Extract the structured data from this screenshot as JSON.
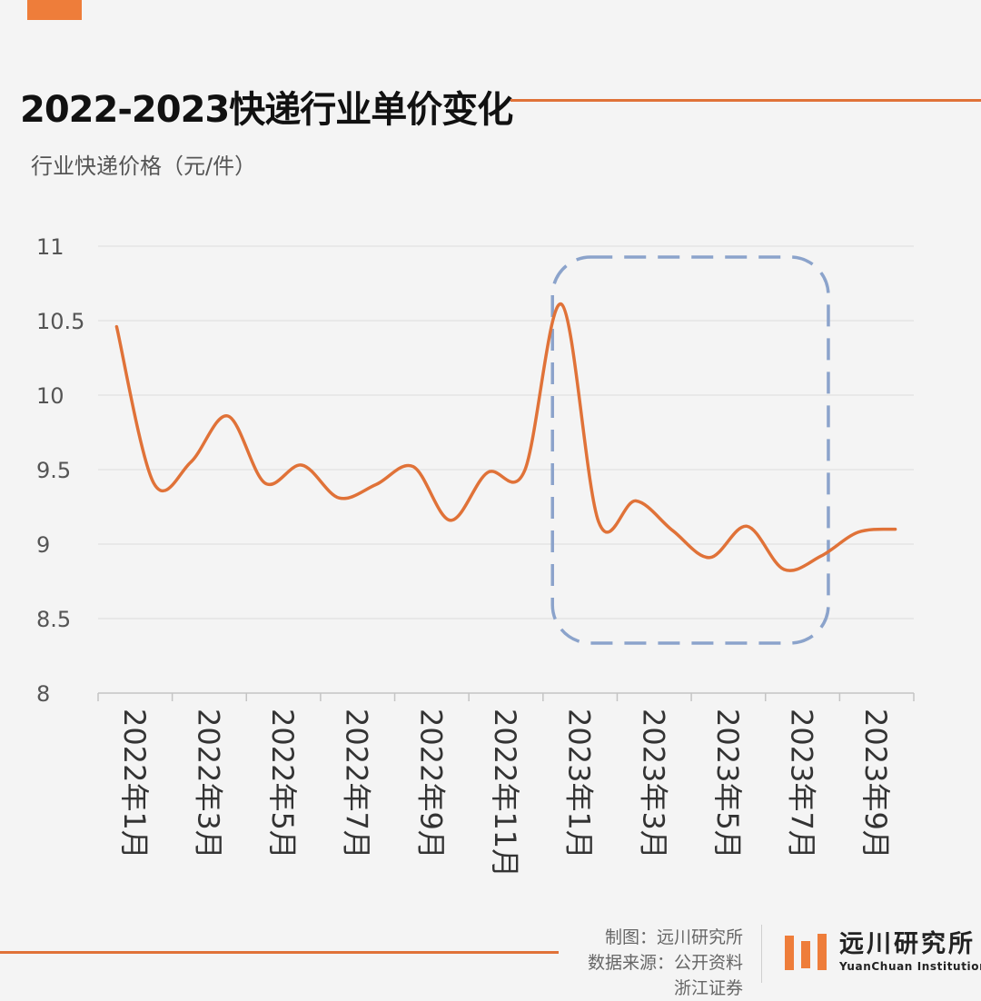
{
  "title": "2022-2023快递行业单价变化",
  "unit_label": "行业快递价格（元/件）",
  "chart_data": {
    "type": "line",
    "title": "2022-2023快递行业单价变化",
    "ylabel": "行业快递价格（元/件）",
    "ylim": [
      8,
      11
    ],
    "yticks": [
      "11",
      "10.5",
      "10",
      "9.5",
      "9",
      "8.5",
      "8"
    ],
    "categories": [
      "2022年1月",
      "2022年3月",
      "2022年5月",
      "2022年7月",
      "2022年9月",
      "2022年11月",
      "2023年1月",
      "2023年3月",
      "2023年5月",
      "2023年7月",
      "2023年9月"
    ],
    "x": [
      "2022年1月",
      "2022年2月",
      "2022年3月",
      "2022年4月",
      "2022年5月",
      "2022年6月",
      "2022年7月",
      "2022年8月",
      "2022年9月",
      "2022年10月",
      "2022年11月",
      "2022年12月",
      "2023年1月",
      "2023年2月",
      "2023年3月",
      "2023年4月",
      "2023年5月",
      "2023年6月",
      "2023年7月",
      "2023年8月",
      "2023年9月",
      "2023年10月"
    ],
    "series": [
      {
        "values": [
          10.46,
          9.41,
          9.55,
          9.86,
          9.41,
          9.53,
          9.31,
          9.4,
          9.52,
          9.16,
          9.48,
          9.49,
          10.61,
          9.15,
          9.29,
          9.09,
          8.91,
          9.12,
          8.83,
          8.92,
          9.08,
          9.1
        ],
        "color": "#e07238"
      }
    ],
    "highlight": {
      "from": "2023年1月",
      "to": "2023年8月",
      "style": "dashed",
      "color": "#8ba3cb"
    },
    "grid": true,
    "legend": "none"
  },
  "footer": {
    "made_by": "制图：远川研究所",
    "source_line1": "数据来源：公开资料",
    "source_line2": "浙江证券"
  },
  "brand": {
    "name_cn": "远川研究所",
    "name_en": "YuanChuan Institution"
  }
}
